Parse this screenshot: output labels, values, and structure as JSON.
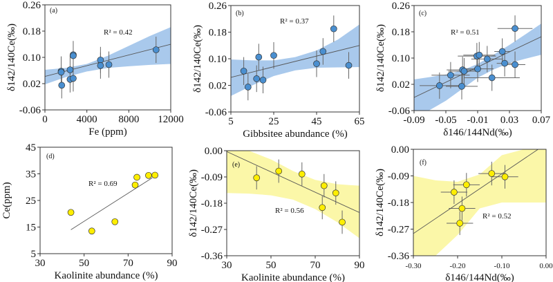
{
  "chart_data": [
    {
      "id": "a",
      "type": "scatter",
      "panel_label": "(a)",
      "xlabel": "Fe (ppm)",
      "ylabel": "δ142/140Ce(‰)",
      "xlim": [
        0,
        12000
      ],
      "ylim": [
        -0.06,
        0.26
      ],
      "xticks": [
        0,
        4000,
        8000,
        12000
      ],
      "yticks": [
        -0.06,
        0.02,
        0.1,
        0.18,
        0.26
      ],
      "ytick_labels": [
        "-0.06",
        "0.02",
        "0.10",
        "0.18",
        "0.26"
      ],
      "xtick_labels": [
        "0",
        "4000",
        "8000",
        "12000"
      ],
      "r2_label": "R² = 0.42",
      "marker_color": "#4a8fd0",
      "band_color": "#a9c9ec",
      "points": [
        {
          "x": 1550,
          "y": 0.058,
          "yerr": 0.045
        },
        {
          "x": 1550,
          "y": 0.055,
          "yerr": 0.0
        },
        {
          "x": 1600,
          "y": 0.015,
          "yerr": 0.04
        },
        {
          "x": 2400,
          "y": 0.062,
          "yerr": 0.045
        },
        {
          "x": 2400,
          "y": 0.033,
          "yerr": 0.04
        },
        {
          "x": 2700,
          "y": 0.108,
          "yerr": 0.042
        },
        {
          "x": 2700,
          "y": 0.105,
          "yerr": 0.0
        },
        {
          "x": 2700,
          "y": 0.036,
          "yerr": 0.04
        },
        {
          "x": 5300,
          "y": 0.092,
          "yerr": 0.04
        },
        {
          "x": 5300,
          "y": 0.075,
          "yerr": 0.04
        },
        {
          "x": 6100,
          "y": 0.078,
          "yerr": 0.04
        },
        {
          "x": 10600,
          "y": 0.123,
          "yerr": 0.04
        }
      ],
      "fit": {
        "x": [
          0,
          12000
        ],
        "y": [
          0.042,
          0.14
        ]
      },
      "band": {
        "x": [
          0,
          2000,
          4000,
          6000,
          8000,
          10000,
          12000
        ],
        "upper": [
          0.062,
          0.068,
          0.08,
          0.105,
          0.135,
          0.165,
          0.192
        ],
        "lower": [
          0.018,
          0.04,
          0.057,
          0.068,
          0.073,
          0.077,
          0.08
        ]
      }
    },
    {
      "id": "b",
      "type": "scatter",
      "panel_label": "(b)",
      "xlabel": "Gibbsitee abundance (%)",
      "ylabel": "δ142/140Ce(‰)",
      "xlim": [
        5,
        65
      ],
      "ylim": [
        -0.06,
        0.26
      ],
      "xticks": [
        5,
        25,
        45,
        65
      ],
      "yticks": [
        -0.06,
        0.02,
        0.1,
        0.18,
        0.26
      ],
      "ytick_labels": [
        "-0.06",
        "0.02",
        "0.10",
        "0.18",
        "0.26"
      ],
      "xtick_labels": [
        "5",
        "25",
        "45",
        "65"
      ],
      "r2_label": "R² = 0.37",
      "marker_color": "#4a8fd0",
      "band_color": "#a9c9ec",
      "points": [
        {
          "x": 11,
          "y": 0.063,
          "yerr": 0.042
        },
        {
          "x": 13,
          "y": 0.015,
          "yerr": 0.04
        },
        {
          "x": 17,
          "y": 0.04,
          "yerr": 0.04
        },
        {
          "x": 18,
          "y": 0.105,
          "yerr": 0.04
        },
        {
          "x": 20,
          "y": 0.036,
          "yerr": 0.04
        },
        {
          "x": 25,
          "y": 0.11,
          "yerr": 0.04
        },
        {
          "x": 45,
          "y": 0.085,
          "yerr": 0.04
        },
        {
          "x": 48,
          "y": 0.122,
          "yerr": 0.04
        },
        {
          "x": 53,
          "y": 0.19,
          "yerr": 0.04
        },
        {
          "x": 60,
          "y": 0.08,
          "yerr": 0.04
        }
      ],
      "fit": {
        "x": [
          5,
          65
        ],
        "y": [
          0.044,
          0.14
        ]
      },
      "band": {
        "x": [
          5,
          15,
          25,
          35,
          45,
          55,
          65
        ],
        "upper": [
          0.098,
          0.095,
          0.095,
          0.105,
          0.125,
          0.158,
          0.203
        ],
        "lower": [
          -0.012,
          0.02,
          0.048,
          0.065,
          0.073,
          0.074,
          0.075
        ]
      }
    },
    {
      "id": "c",
      "type": "scatter",
      "panel_label": "(c)",
      "xlabel": "δ146/144Nd(‰)",
      "ylabel": "δ142/140Ce(‰)",
      "xlim": [
        -0.09,
        0.07
      ],
      "ylim": [
        -0.06,
        0.26
      ],
      "xticks": [
        -0.09,
        -0.05,
        -0.01,
        0.03,
        0.07
      ],
      "yticks": [
        -0.06,
        0.02,
        0.1,
        0.18,
        0.26
      ],
      "ytick_labels": [
        "-0.06",
        "0.02",
        "0.10",
        "0.18",
        "0.26"
      ],
      "xtick_labels": [
        "-0.09",
        "-0.05",
        "-0.01",
        "0.03",
        "0.07"
      ],
      "r2_label": "R² = 0.51",
      "marker_color": "#4a8fd0",
      "band_color": "#a9c9ec",
      "points": [
        {
          "x": -0.058,
          "y": 0.016,
          "xerr": 0.025,
          "yerr": 0.04
        },
        {
          "x": -0.044,
          "y": 0.048,
          "xerr": 0.024,
          "yerr": 0.04
        },
        {
          "x": -0.03,
          "y": 0.014,
          "xerr": 0.02,
          "yerr": 0.04
        },
        {
          "x": -0.029,
          "y": 0.064,
          "xerr": 0.02,
          "yerr": 0.04
        },
        {
          "x": -0.027,
          "y": 0.06,
          "xerr": 0.02,
          "yerr": 0.04
        },
        {
          "x": -0.011,
          "y": 0.106,
          "xerr": 0.024,
          "yerr": 0.04
        },
        {
          "x": -0.008,
          "y": 0.109,
          "xerr": 0.02,
          "yerr": 0.04
        },
        {
          "x": -0.01,
          "y": 0.067,
          "xerr": 0.02,
          "yerr": 0.04
        },
        {
          "x": 0.002,
          "y": 0.097,
          "xerr": 0.02,
          "yerr": 0.04
        },
        {
          "x": 0.008,
          "y": 0.04,
          "xerr": 0.035,
          "yerr": 0.04
        },
        {
          "x": 0.021,
          "y": 0.12,
          "xerr": 0.01,
          "yerr": 0.04
        },
        {
          "x": 0.024,
          "y": 0.084,
          "xerr": 0.01,
          "yerr": 0.04
        },
        {
          "x": 0.037,
          "y": 0.19,
          "xerr": 0.022,
          "yerr": 0.04
        },
        {
          "x": 0.037,
          "y": 0.08,
          "xerr": 0.013,
          "yerr": 0.04
        }
      ],
      "fit": {
        "x": [
          -0.09,
          0.07
        ],
        "y": [
          -0.02,
          0.165
        ]
      },
      "band": {
        "x": [
          -0.09,
          -0.07,
          -0.05,
          -0.03,
          -0.01,
          0.01,
          0.03,
          0.05,
          0.07
        ],
        "upper": [
          0.035,
          0.042,
          0.05,
          0.062,
          0.082,
          0.11,
          0.14,
          0.172,
          0.205
        ],
        "lower": [
          -0.085,
          -0.058,
          -0.03,
          0.005,
          0.04,
          0.065,
          0.085,
          0.098,
          0.11
        ]
      }
    },
    {
      "id": "d",
      "type": "scatter",
      "panel_label": "(d)",
      "xlabel": "Kaolinite abundance (%)",
      "ylabel": "Ce(ppm)",
      "xlim": [
        30,
        90
      ],
      "ylim": [
        5,
        45
      ],
      "xticks": [
        30,
        50,
        70,
        90
      ],
      "yticks": [
        5,
        15,
        25,
        35,
        45
      ],
      "ytick_labels": [
        "5",
        "15",
        "25",
        "35",
        "45"
      ],
      "xtick_labels": [
        "30",
        "50",
        "70",
        "90"
      ],
      "r2_label": "R² = 0.69",
      "marker_color": "#ffee00",
      "points": [
        {
          "x": 44,
          "y": 20.5
        },
        {
          "x": 53.5,
          "y": 13.5
        },
        {
          "x": 64,
          "y": 17
        },
        {
          "x": 73.2,
          "y": 30.8
        },
        {
          "x": 74,
          "y": 33.7
        },
        {
          "x": 79.3,
          "y": 34.4
        },
        {
          "x": 82.2,
          "y": 34.5
        }
      ],
      "fit": {
        "x": [
          44,
          81
        ],
        "y": [
          14,
          33.5
        ]
      }
    },
    {
      "id": "e",
      "type": "scatter",
      "panel_label": "(e)",
      "xlabel": "Kaolinite abundance (%)",
      "ylabel": "δ142/140Ce(‰)",
      "xlim": [
        30,
        90
      ],
      "ylim": [
        -0.36,
        0.0
      ],
      "xticks": [
        30,
        50,
        70,
        90
      ],
      "yticks": [
        -0.36,
        -0.27,
        -0.18,
        -0.09,
        0.0
      ],
      "ytick_labels": [
        "-0.36",
        "-0.27",
        "-0.18",
        "-0.09",
        "0.00"
      ],
      "xtick_labels": [
        "30",
        "50",
        "70",
        "90"
      ],
      "r2_label": "R² = 0.56",
      "marker_color": "#ffee00",
      "band_color": "#fbf7a8",
      "points": [
        {
          "x": 43.5,
          "y": -0.093,
          "yerr": 0.04
        },
        {
          "x": 53.5,
          "y": -0.07,
          "yerr": 0.04
        },
        {
          "x": 64,
          "y": -0.08,
          "yerr": 0.04
        },
        {
          "x": 73.2,
          "y": -0.195,
          "yerr": 0.04
        },
        {
          "x": 74,
          "y": -0.12,
          "yerr": 0.04
        },
        {
          "x": 79.3,
          "y": -0.145,
          "yerr": 0.04
        },
        {
          "x": 82.2,
          "y": -0.245,
          "yerr": 0.04
        }
      ],
      "fit": {
        "x": [
          30,
          90
        ],
        "y": [
          -0.003,
          -0.212
        ]
      },
      "band": {
        "x": [
          30,
          40,
          50,
          60,
          70,
          80,
          90
        ],
        "upper": [
          0.0,
          0.0,
          -0.03,
          -0.07,
          -0.1,
          -0.115,
          -0.12
        ],
        "lower": [
          -0.145,
          -0.147,
          -0.153,
          -0.168,
          -0.2,
          -0.245,
          -0.3
        ]
      }
    },
    {
      "id": "f",
      "type": "scatter",
      "panel_label": "(f)",
      "xlabel": "δ146/144Nd(‰)",
      "ylabel": "δ142/140Ce(‰)",
      "xlim": [
        -0.3,
        0.0
      ],
      "ylim": [
        -0.36,
        0.0
      ],
      "xticks": [
        -0.3,
        -0.2,
        -0.1,
        0.0
      ],
      "yticks": [
        -0.36,
        -0.27,
        -0.18,
        -0.09,
        0.0
      ],
      "ytick_labels": [
        "-0.36",
        "-0.27",
        "-0.18",
        "-0.09",
        "0.00"
      ],
      "xtick_labels": [
        "-0.30",
        "-0.20",
        "-0.10",
        "0.00"
      ],
      "r2_label": "R² = 0.52",
      "marker_color": "#ffee00",
      "band_color": "#fbf7a8",
      "points": [
        {
          "x": -0.208,
          "y": -0.145,
          "xerr": 0.03,
          "yerr": 0.04
        },
        {
          "x": -0.18,
          "y": -0.12,
          "xerr": 0.03,
          "yerr": 0.04
        },
        {
          "x": -0.19,
          "y": -0.2,
          "xerr": 0.03,
          "yerr": 0.04
        },
        {
          "x": -0.195,
          "y": -0.25,
          "xerr": 0.03,
          "yerr": 0.04
        },
        {
          "x": -0.123,
          "y": -0.082,
          "xerr": 0.03,
          "yerr": 0.04
        },
        {
          "x": -0.093,
          "y": -0.093,
          "xerr": 0.03,
          "yerr": 0.04
        }
      ],
      "fit": {
        "x": [
          -0.3,
          -0.018
        ],
        "y": [
          -0.285,
          0.0
        ]
      },
      "band": {
        "x": [
          -0.3,
          -0.25,
          -0.2,
          -0.15,
          -0.1,
          -0.05,
          0.0
        ],
        "upper": [
          -0.09,
          -0.105,
          -0.11,
          -0.085,
          -0.02,
          0.0,
          0.0
        ],
        "lower": [
          -0.36,
          -0.36,
          -0.29,
          -0.2,
          -0.18,
          -0.18,
          -0.18
        ]
      }
    }
  ]
}
